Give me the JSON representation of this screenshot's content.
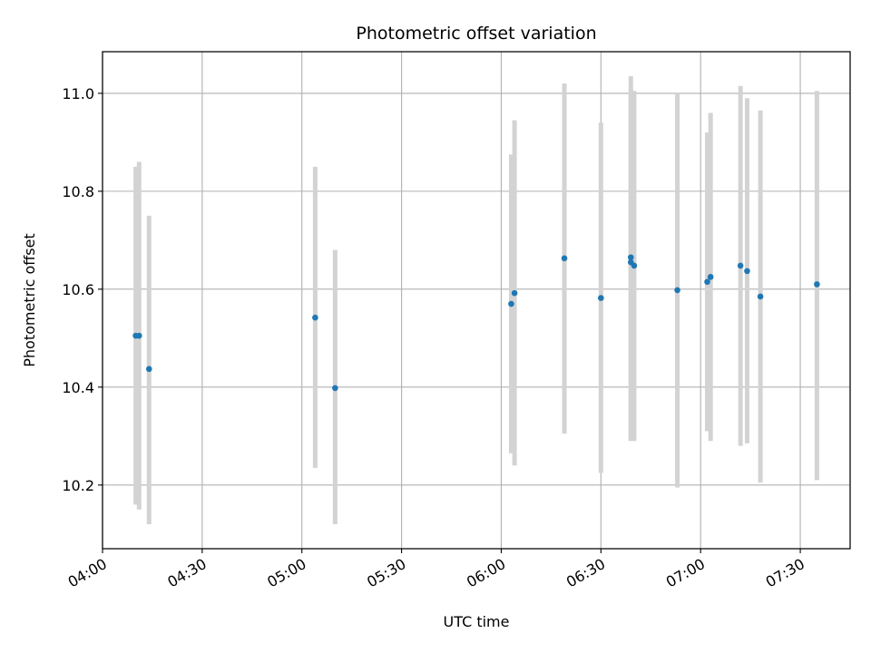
{
  "chart_data": {
    "type": "scatter",
    "title": "Photometric offset variation",
    "xlabel": "UTC time",
    "ylabel": "Photometric offset",
    "xlim": [
      "04:00",
      "07:45"
    ],
    "ylim": [
      10.07,
      11.085
    ],
    "x_ticks": [
      "04:00",
      "04:30",
      "05:00",
      "05:30",
      "06:00",
      "06:30",
      "07:00",
      "07:30"
    ],
    "y_ticks": [
      10.2,
      10.4,
      10.6,
      10.8,
      11.0
    ],
    "grid": true,
    "colors": {
      "point": "#1f77b4",
      "errorbar": "#d3d3d3",
      "grid": "#b0b0b0"
    },
    "points": [
      {
        "x": "04:10",
        "y": 10.505,
        "ylo": 10.16,
        "yhi": 10.85
      },
      {
        "x": "04:11",
        "y": 10.505,
        "ylo": 10.15,
        "yhi": 10.86
      },
      {
        "x": "04:14",
        "y": 10.437,
        "ylo": 10.12,
        "yhi": 10.75
      },
      {
        "x": "05:04",
        "y": 10.542,
        "ylo": 10.235,
        "yhi": 10.85
      },
      {
        "x": "05:10",
        "y": 10.398,
        "ylo": 10.12,
        "yhi": 10.68
      },
      {
        "x": "06:03",
        "y": 10.57,
        "ylo": 10.265,
        "yhi": 10.875
      },
      {
        "x": "06:04",
        "y": 10.592,
        "ylo": 10.24,
        "yhi": 10.945
      },
      {
        "x": "06:19",
        "y": 10.663,
        "ylo": 10.305,
        "yhi": 11.02
      },
      {
        "x": "06:30",
        "y": 10.582,
        "ylo": 10.225,
        "yhi": 10.94
      },
      {
        "x": "06:39",
        "y": 10.665,
        "ylo": 10.295,
        "yhi": 11.035
      },
      {
        "x": "06:39",
        "y": 10.655,
        "ylo": 10.29,
        "yhi": 11.01
      },
      {
        "x": "06:40",
        "y": 10.648,
        "ylo": 10.29,
        "yhi": 11.005
      },
      {
        "x": "06:53",
        "y": 10.598,
        "ylo": 10.195,
        "yhi": 11.0
      },
      {
        "x": "07:02",
        "y": 10.615,
        "ylo": 10.31,
        "yhi": 10.92
      },
      {
        "x": "07:03",
        "y": 10.625,
        "ylo": 10.29,
        "yhi": 10.96
      },
      {
        "x": "07:12",
        "y": 10.648,
        "ylo": 10.28,
        "yhi": 11.015
      },
      {
        "x": "07:14",
        "y": 10.637,
        "ylo": 10.285,
        "yhi": 10.99
      },
      {
        "x": "07:18",
        "y": 10.585,
        "ylo": 10.205,
        "yhi": 10.965
      },
      {
        "x": "07:35",
        "y": 10.61,
        "ylo": 10.21,
        "yhi": 11.005
      }
    ]
  }
}
